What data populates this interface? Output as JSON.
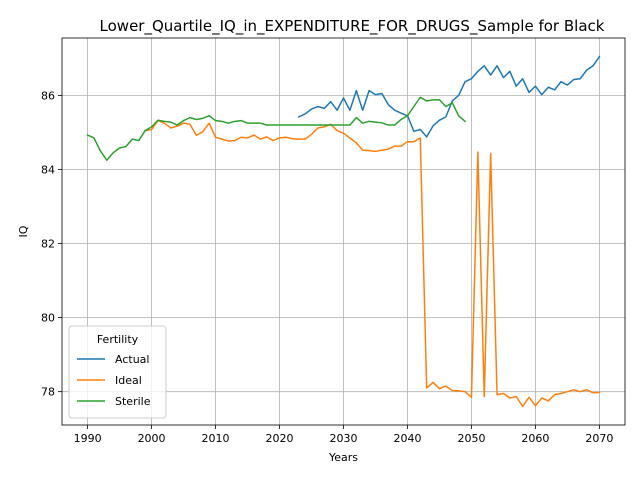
{
  "chart_data": {
    "type": "line",
    "title": "Lower_Quartile_IQ_in_EXPENDITURE_FOR_DRUGS_Sample for Black",
    "xlabel": "Years",
    "ylabel": "IQ",
    "xlim": [
      1986.0,
      2074.0
    ],
    "ylim": [
      77.1,
      87.55
    ],
    "xticks": [
      1990,
      2000,
      2010,
      2020,
      2030,
      2040,
      2050,
      2060,
      2070
    ],
    "xtick_labels": [
      "1990",
      "2000",
      "2010",
      "2020",
      "2030",
      "2040",
      "2050",
      "2060",
      "2070"
    ],
    "yticks": [
      78,
      80,
      82,
      84,
      86
    ],
    "ytick_labels": [
      "78",
      "80",
      "82",
      "84",
      "86"
    ],
    "grid": true,
    "legend": {
      "title": "Fertility",
      "position": "lower-left"
    },
    "series": [
      {
        "name": "Actual",
        "color": "#1f77b4",
        "x": [
          2023,
          2024,
          2025,
          2026,
          2027,
          2028,
          2029,
          2030,
          2031,
          2032,
          2033,
          2034,
          2035,
          2036,
          2037,
          2038,
          2039,
          2040,
          2041,
          2042,
          2043,
          2044,
          2045,
          2046,
          2047,
          2048,
          2049,
          2050,
          2051,
          2052,
          2053,
          2054,
          2055,
          2056,
          2057,
          2058,
          2059,
          2060,
          2061,
          2062,
          2063,
          2064,
          2065,
          2066,
          2067,
          2068,
          2069,
          2070
        ],
        "y": [
          85.42,
          85.5,
          85.63,
          85.7,
          85.65,
          85.83,
          85.6,
          85.93,
          85.6,
          86.13,
          85.6,
          86.13,
          86.02,
          86.05,
          85.75,
          85.6,
          85.52,
          85.45,
          85.03,
          85.08,
          84.88,
          85.18,
          85.33,
          85.42,
          85.85,
          86.0,
          86.37,
          86.45,
          86.65,
          86.8,
          86.55,
          86.8,
          86.48,
          86.65,
          86.25,
          86.45,
          86.08,
          86.25,
          86.02,
          86.22,
          86.15,
          86.37,
          86.28,
          86.43,
          86.45,
          86.68,
          86.8,
          87.05
        ]
      },
      {
        "name": "Ideal",
        "color": "#ff7f0e",
        "x": [
          1999,
          2000,
          2001,
          2002,
          2003,
          2004,
          2005,
          2006,
          2007,
          2008,
          2009,
          2010,
          2011,
          2012,
          2013,
          2014,
          2015,
          2016,
          2017,
          2018,
          2019,
          2020,
          2021,
          2022,
          2023,
          2024,
          2025,
          2026,
          2027,
          2028,
          2029,
          2030,
          2031,
          2032,
          2033,
          2034,
          2035,
          2036,
          2037,
          2038,
          2039,
          2040,
          2041,
          2042,
          2043,
          2044,
          2045,
          2046,
          2047,
          2048,
          2049,
          2050,
          2051,
          2052,
          2053,
          2054,
          2055,
          2056,
          2057,
          2058,
          2059,
          2060,
          2061,
          2062,
          2063,
          2064,
          2065,
          2066,
          2067,
          2068,
          2069,
          2070
        ],
        "y": [
          85.05,
          85.08,
          85.32,
          85.25,
          85.12,
          85.17,
          85.25,
          85.22,
          84.92,
          85.02,
          85.25,
          84.87,
          84.82,
          84.77,
          84.78,
          84.87,
          84.85,
          84.93,
          84.82,
          84.88,
          84.78,
          84.85,
          84.87,
          84.83,
          84.82,
          84.82,
          84.95,
          85.12,
          85.15,
          85.22,
          85.05,
          84.98,
          84.85,
          84.72,
          84.52,
          84.51,
          84.49,
          84.52,
          84.55,
          84.63,
          84.63,
          84.75,
          84.75,
          84.85,
          78.1,
          78.25,
          78.08,
          78.15,
          78.03,
          78.02,
          78.0,
          77.85,
          84.47,
          77.87,
          84.43,
          77.92,
          77.95,
          77.83,
          77.87,
          77.6,
          77.85,
          77.62,
          77.83,
          77.75,
          77.92,
          77.95,
          78.0,
          78.05,
          78.0,
          78.05,
          77.97,
          77.98
        ]
      },
      {
        "name": "Sterile",
        "color": "#2ca02c",
        "x": [
          1990,
          1991,
          1992,
          1993,
          1994,
          1995,
          1996,
          1997,
          1998,
          1999,
          2000,
          2001,
          2002,
          2003,
          2004,
          2005,
          2006,
          2007,
          2008,
          2009,
          2010,
          2011,
          2012,
          2013,
          2014,
          2015,
          2016,
          2017,
          2018,
          2019,
          2020,
          2021,
          2022,
          2023,
          2024,
          2025,
          2026,
          2027,
          2028,
          2029,
          2030,
          2031,
          2032,
          2033,
          2034,
          2035,
          2036,
          2037,
          2038,
          2039,
          2040,
          2041,
          2042,
          2043,
          2044,
          2045,
          2046,
          2047,
          2048,
          2049
        ],
        "y": [
          84.93,
          84.85,
          84.5,
          84.25,
          84.45,
          84.58,
          84.62,
          84.82,
          84.78,
          85.05,
          85.15,
          85.33,
          85.3,
          85.28,
          85.2,
          85.32,
          85.4,
          85.35,
          85.38,
          85.45,
          85.32,
          85.3,
          85.25,
          85.3,
          85.32,
          85.25,
          85.25,
          85.25,
          85.2,
          85.2,
          85.2,
          85.2,
          85.2,
          85.2,
          85.2,
          85.2,
          85.2,
          85.2,
          85.2,
          85.2,
          85.2,
          85.2,
          85.4,
          85.25,
          85.3,
          85.28,
          85.26,
          85.2,
          85.2,
          85.35,
          85.45,
          85.7,
          85.95,
          85.85,
          85.88,
          85.88,
          85.7,
          85.8,
          85.45,
          85.3
        ]
      }
    ]
  }
}
